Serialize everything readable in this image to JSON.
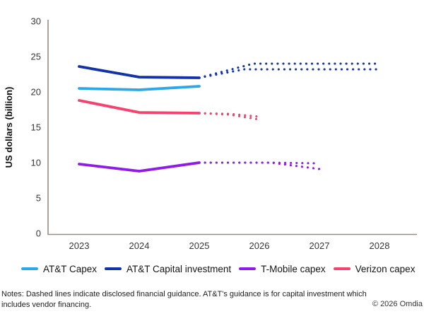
{
  "chart_data": {
    "type": "line",
    "title": "",
    "xlabel": "",
    "ylabel": "US dollars (billion)",
    "ylim": [
      0,
      30
    ],
    "yticks": [
      0,
      5,
      10,
      15,
      20,
      25,
      30
    ],
    "x_categories": [
      "2023",
      "2024",
      "2025",
      "2026",
      "2027",
      "2028"
    ],
    "axis_color": "#9c8c80",
    "grid": "off",
    "legend_position": "bottom",
    "series": [
      {
        "name": "AT&T Capex",
        "slug": "att-capex",
        "color": "#29a9e8",
        "style": "solid",
        "points": [
          [
            2023,
            20.5
          ],
          [
            2024,
            20.3
          ],
          [
            2025,
            20.8
          ]
        ]
      },
      {
        "name": "AT&T Capital investment",
        "slug": "att-capital-investment",
        "color": "#1232a8",
        "style": "solid",
        "points": [
          [
            2023,
            23.6
          ],
          [
            2024,
            22.1
          ],
          [
            2025,
            22.0
          ]
        ]
      },
      {
        "name": "AT&T Capital investment guidance (high)",
        "slug": "att-capital-investment-guidance-high",
        "color": "#1232a8",
        "style": "dotted",
        "points": [
          [
            2025,
            22.0
          ],
          [
            2025.9,
            24.0
          ],
          [
            2028,
            24.0
          ]
        ]
      },
      {
        "name": "AT&T Capital investment guidance (low)",
        "slug": "att-capital-investment-guidance-low",
        "color": "#1232a8",
        "style": "dotted",
        "points": [
          [
            2025,
            22.0
          ],
          [
            2025.75,
            23.2
          ],
          [
            2028,
            23.2
          ]
        ]
      },
      {
        "name": "T-Mobile capex",
        "slug": "tmobile-capex",
        "color": "#8f1be8",
        "style": "solid",
        "points": [
          [
            2023,
            9.8
          ],
          [
            2024,
            8.8
          ],
          [
            2025,
            10.0
          ]
        ]
      },
      {
        "name": "T-Mobile capex guidance (high)",
        "slug": "tmobile-capex-guidance-high",
        "color": "#8f1be8",
        "style": "dotted",
        "points": [
          [
            2025,
            10.0
          ],
          [
            2026.2,
            10.0
          ],
          [
            2027,
            9.9
          ]
        ]
      },
      {
        "name": "T-Mobile capex guidance (low)",
        "slug": "tmobile-capex-guidance-low",
        "color": "#8f1be8",
        "style": "dotted",
        "points": [
          [
            2025,
            10.0
          ],
          [
            2026.2,
            10.0
          ],
          [
            2027,
            9.1
          ]
        ]
      },
      {
        "name": "Verizon capex",
        "slug": "verizon-capex",
        "color": "#f4436e",
        "style": "solid",
        "points": [
          [
            2023,
            18.8
          ],
          [
            2024,
            17.1
          ],
          [
            2025,
            17.0
          ]
        ]
      },
      {
        "name": "Verizon capex guidance (high)",
        "slug": "verizon-capex-guidance-high",
        "color": "#f4436e",
        "style": "dotted",
        "points": [
          [
            2025,
            17.0
          ],
          [
            2025.5,
            16.9
          ],
          [
            2026,
            16.5
          ]
        ]
      },
      {
        "name": "Verizon capex guidance (low)",
        "slug": "verizon-capex-guidance-low",
        "color": "#f4436e",
        "style": "dotted",
        "points": [
          [
            2025,
            17.0
          ],
          [
            2025.5,
            16.8
          ],
          [
            2026,
            16.1
          ]
        ]
      }
    ],
    "legend": [
      {
        "label": "AT&T Capex",
        "color": "#29a9e8"
      },
      {
        "label": "AT&T Capital investment",
        "color": "#1232a8"
      },
      {
        "label": "T-Mobile capex",
        "color": "#8f1be8"
      },
      {
        "label": "Verizon capex",
        "color": "#f4436e"
      }
    ]
  },
  "notes": "Notes: Dashed lines indicate disclosed financial guidance. AT&T's guidance is for capital investment which includes vendor financing.",
  "copyright": "© 2026 Omdia"
}
